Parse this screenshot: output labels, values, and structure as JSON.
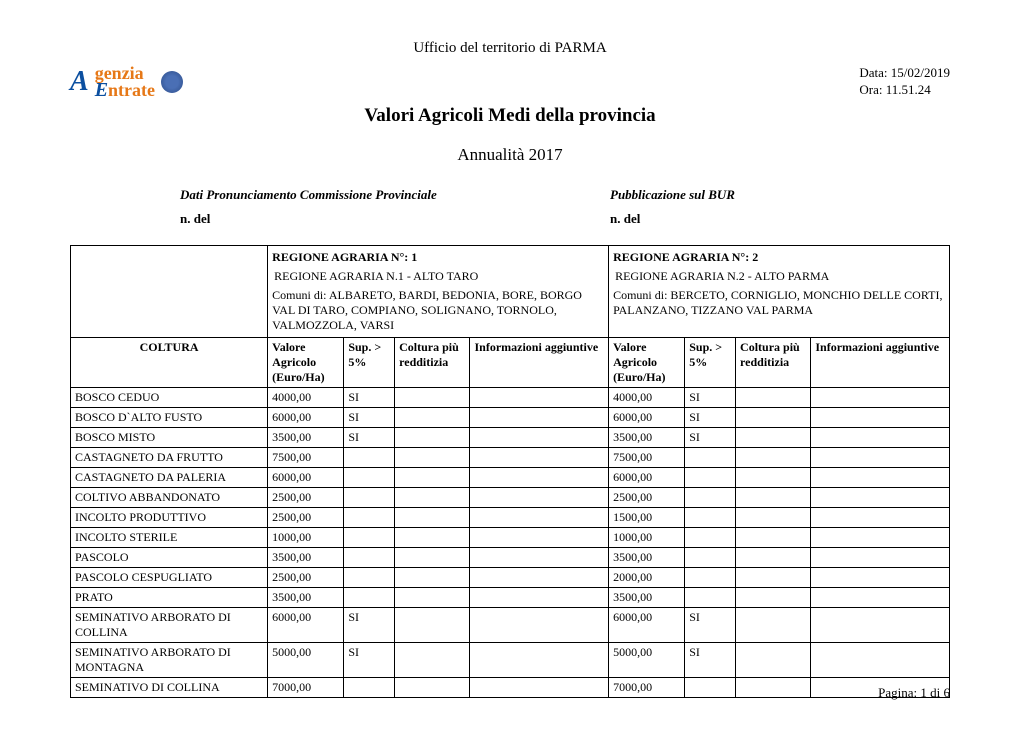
{
  "office": "Ufficio del territorio di  PARMA",
  "logo": {
    "brand1": "genzia",
    "brand2": "ntrate"
  },
  "date_label": "Data: 15/02/2019",
  "time_label": "Ora: 11.51.24",
  "title": "Valori Agricoli Medi della provincia",
  "subtitle": "Annualità  2017",
  "meta": {
    "left_title": "Dati Pronunciamento Commissione Provinciale",
    "right_title": "Pubblicazione sul BUR",
    "left_sub": "n. del",
    "right_sub": "n.  del"
  },
  "regions": [
    {
      "num_label": "REGIONE AGRARIA N°:  1",
      "name": "REGIONE AGRARIA N.1 - ALTO TARO",
      "comuni": "Comuni di: ALBARETO, BARDI, BEDONIA, BORE, BORGO VAL DI TARO, COMPIANO, SOLIGNANO, TORNOLO, VALMOZZOLA, VARSI"
    },
    {
      "num_label": "REGIONE AGRARIA N°: 2",
      "name": "REGIONE AGRARIA N.2 - ALTO PARMA",
      "comuni": "Comuni di: BERCETO, CORNIGLIO, MONCHIO DELLE CORTI, PALANZANO, TIZZANO VAL PARMA"
    }
  ],
  "col_headers": {
    "coltura": "COLTURA",
    "valore": "Valore Agricolo (Euro/Ha)",
    "sup": "Sup. > 5%",
    "redditizia": "Coltura più redditizia",
    "info": "Informazioni aggiuntive"
  },
  "rows": [
    {
      "name": "BOSCO CEDUO",
      "r1": {
        "val": "4000,00",
        "sup": "SI"
      },
      "r2": {
        "val": "4000,00",
        "sup": "SI"
      }
    },
    {
      "name": "BOSCO D`ALTO FUSTO",
      "r1": {
        "val": "6000,00",
        "sup": "SI"
      },
      "r2": {
        "val": "6000,00",
        "sup": "SI"
      }
    },
    {
      "name": "BOSCO MISTO",
      "r1": {
        "val": "3500,00",
        "sup": "SI"
      },
      "r2": {
        "val": "3500,00",
        "sup": "SI"
      }
    },
    {
      "name": "CASTAGNETO DA FRUTTO",
      "r1": {
        "val": "7500,00",
        "sup": ""
      },
      "r2": {
        "val": "7500,00",
        "sup": ""
      }
    },
    {
      "name": "CASTAGNETO DA PALERIA",
      "r1": {
        "val": "6000,00",
        "sup": ""
      },
      "r2": {
        "val": "6000,00",
        "sup": ""
      }
    },
    {
      "name": "COLTIVO ABBANDONATO",
      "r1": {
        "val": "2500,00",
        "sup": ""
      },
      "r2": {
        "val": "2500,00",
        "sup": ""
      }
    },
    {
      "name": "INCOLTO PRODUTTIVO",
      "r1": {
        "val": "2500,00",
        "sup": ""
      },
      "r2": {
        "val": "1500,00",
        "sup": ""
      }
    },
    {
      "name": "INCOLTO STERILE",
      "r1": {
        "val": "1000,00",
        "sup": ""
      },
      "r2": {
        "val": "1000,00",
        "sup": ""
      }
    },
    {
      "name": "PASCOLO",
      "r1": {
        "val": "3500,00",
        "sup": ""
      },
      "r2": {
        "val": "3500,00",
        "sup": ""
      }
    },
    {
      "name": "PASCOLO CESPUGLIATO",
      "r1": {
        "val": "2500,00",
        "sup": ""
      },
      "r2": {
        "val": "2000,00",
        "sup": ""
      }
    },
    {
      "name": "PRATO",
      "r1": {
        "val": "3500,00",
        "sup": ""
      },
      "r2": {
        "val": "3500,00",
        "sup": ""
      }
    },
    {
      "name": "SEMINATIVO ARBORATO DI COLLINA",
      "r1": {
        "val": "6000,00",
        "sup": "SI"
      },
      "r2": {
        "val": "6000,00",
        "sup": "SI"
      }
    },
    {
      "name": "SEMINATIVO ARBORATO DI MONTAGNA",
      "r1": {
        "val": "5000,00",
        "sup": "SI"
      },
      "r2": {
        "val": "5000,00",
        "sup": "SI"
      }
    },
    {
      "name": "SEMINATIVO DI COLLINA",
      "r1": {
        "val": "7000,00",
        "sup": ""
      },
      "r2": {
        "val": "7000,00",
        "sup": ""
      }
    }
  ],
  "footer": "Pagina: 1 di 6"
}
